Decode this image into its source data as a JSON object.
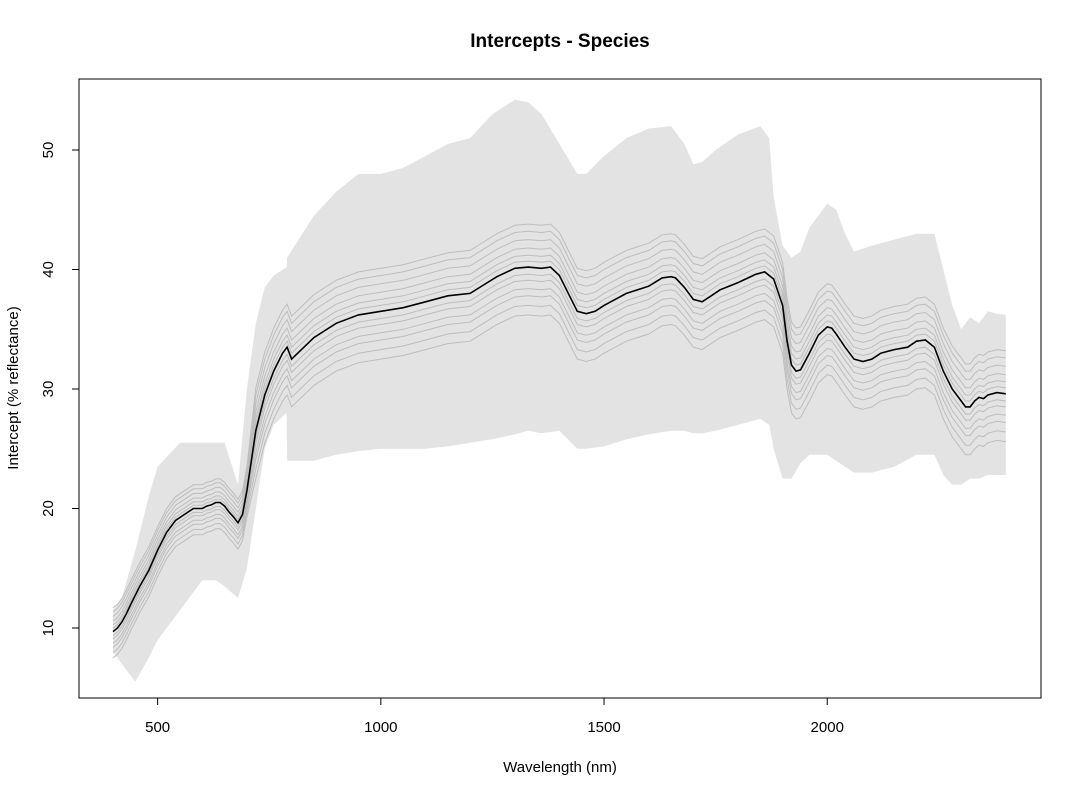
{
  "chart_data": {
    "type": "line",
    "title": "Intercepts - Species",
    "xlabel": "Wavelength (nm)",
    "ylabel": "Intercept (% reflectance)",
    "xlim": [
      400,
      2400
    ],
    "ylim": [
      4.5,
      56
    ],
    "xticks": [
      500,
      1000,
      1500,
      2000
    ],
    "yticks": [
      10,
      20,
      30,
      40,
      50
    ],
    "grid": false,
    "colors": {
      "mean": "#000000",
      "species": "#bdbdbd",
      "band": "#e3e3e3"
    },
    "band": {
      "x": [
        400,
        420,
        450,
        480,
        500,
        550,
        600,
        630,
        650,
        680,
        700,
        720,
        740,
        760,
        789,
        790,
        850,
        900,
        950,
        1000,
        1050,
        1100,
        1150,
        1200,
        1250,
        1300,
        1330,
        1360,
        1400,
        1440,
        1460,
        1500,
        1550,
        1600,
        1650,
        1680,
        1700,
        1720,
        1750,
        1800,
        1850,
        1870,
        1880,
        1900,
        1920,
        1940,
        1960,
        2000,
        2020,
        2040,
        2060,
        2100,
        2150,
        2200,
        2240,
        2260,
        2280,
        2300,
        2320,
        2340,
        2360,
        2380,
        2400
      ],
      "upper": [
        11.5,
        12.5,
        16.5,
        21,
        23.5,
        25.5,
        25.5,
        25.5,
        25.5,
        22,
        30,
        35.5,
        38.5,
        39.5,
        40.2,
        41,
        44.5,
        46.5,
        48,
        48,
        48.5,
        49.5,
        50.5,
        51,
        53,
        54.2,
        54,
        53,
        50.5,
        48,
        48,
        49.5,
        51,
        51.8,
        52,
        50.5,
        48.8,
        49,
        50,
        51.3,
        52,
        51,
        46,
        42,
        41,
        41.5,
        43.5,
        45.5,
        45,
        43,
        41.5,
        42,
        42.5,
        43,
        43,
        40,
        37,
        35,
        36,
        35.5,
        36.5,
        36.3,
        36.2
      ],
      "lower": [
        8,
        7,
        5.5,
        7.5,
        9,
        11.5,
        14,
        14,
        13.5,
        12.5,
        15,
        20,
        25,
        27,
        28,
        24,
        24,
        24.5,
        24.8,
        25,
        25,
        25,
        25.2,
        25.5,
        25.8,
        26.2,
        26.5,
        26.3,
        26.5,
        25,
        25,
        25.2,
        25.8,
        26.2,
        26.5,
        26.5,
        26.3,
        26.3,
        26.5,
        27,
        27.5,
        27,
        25,
        22.5,
        22.5,
        23.8,
        24.5,
        24.5,
        24,
        23.5,
        23,
        23,
        23.5,
        24.5,
        24.5,
        22.8,
        22,
        22,
        22.5,
        22.5,
        22.8,
        22.8,
        22.8
      ]
    },
    "series": [
      {
        "x": [
          400,
          410,
          420,
          430,
          440,
          460,
          480,
          500,
          520,
          540,
          560,
          580,
          600,
          610,
          620,
          630,
          640,
          650,
          660,
          670,
          680,
          690,
          700,
          720,
          740,
          760,
          780,
          790,
          800,
          850,
          900,
          950,
          1000,
          1050,
          1100,
          1150,
          1200,
          1230,
          1260,
          1300,
          1330,
          1360,
          1380,
          1400,
          1420,
          1440,
          1460,
          1480,
          1500,
          1550,
          1600,
          1630,
          1650,
          1660,
          1680,
          1700,
          1720,
          1740,
          1760,
          1780,
          1800,
          1840,
          1860,
          1880,
          1900,
          1910,
          1920,
          1930,
          1940,
          1960,
          1980,
          2000,
          2010,
          2020,
          2040,
          2060,
          2080,
          2100,
          2120,
          2150,
          2180,
          2200,
          2220,
          2240,
          2260,
          2280,
          2300,
          2310,
          2320,
          2330,
          2340,
          2350,
          2360,
          2380,
          2400
        ],
        "values": [
          9.7,
          10,
          10.5,
          11.2,
          12,
          13.5,
          14.8,
          16.5,
          18,
          19,
          19.5,
          20,
          20,
          20.2,
          20.3,
          20.5,
          20.5,
          20.2,
          19.7,
          19.3,
          18.8,
          19.5,
          21.5,
          26.5,
          29.5,
          31.5,
          33,
          33.5,
          32.5,
          34.3,
          35.5,
          36.2,
          36.5,
          36.8,
          37.3,
          37.8,
          38,
          38.7,
          39.4,
          40.1,
          40.2,
          40.1,
          40.2,
          39.5,
          38,
          36.5,
          36.3,
          36.5,
          37,
          38,
          38.6,
          39.3,
          39.4,
          39.3,
          38.5,
          37.5,
          37.3,
          37.8,
          38.3,
          38.6,
          38.9,
          39.6,
          39.8,
          39.2,
          37,
          34,
          32,
          31.5,
          31.6,
          33,
          34.5,
          35.2,
          35.1,
          34.6,
          33.5,
          32.5,
          32.3,
          32.5,
          33,
          33.3,
          33.5,
          34,
          34.1,
          33.5,
          31.5,
          30,
          29,
          28.5,
          28.5,
          29,
          29.3,
          29.2,
          29.5,
          29.7,
          29.6
        ]
      }
    ]
  }
}
